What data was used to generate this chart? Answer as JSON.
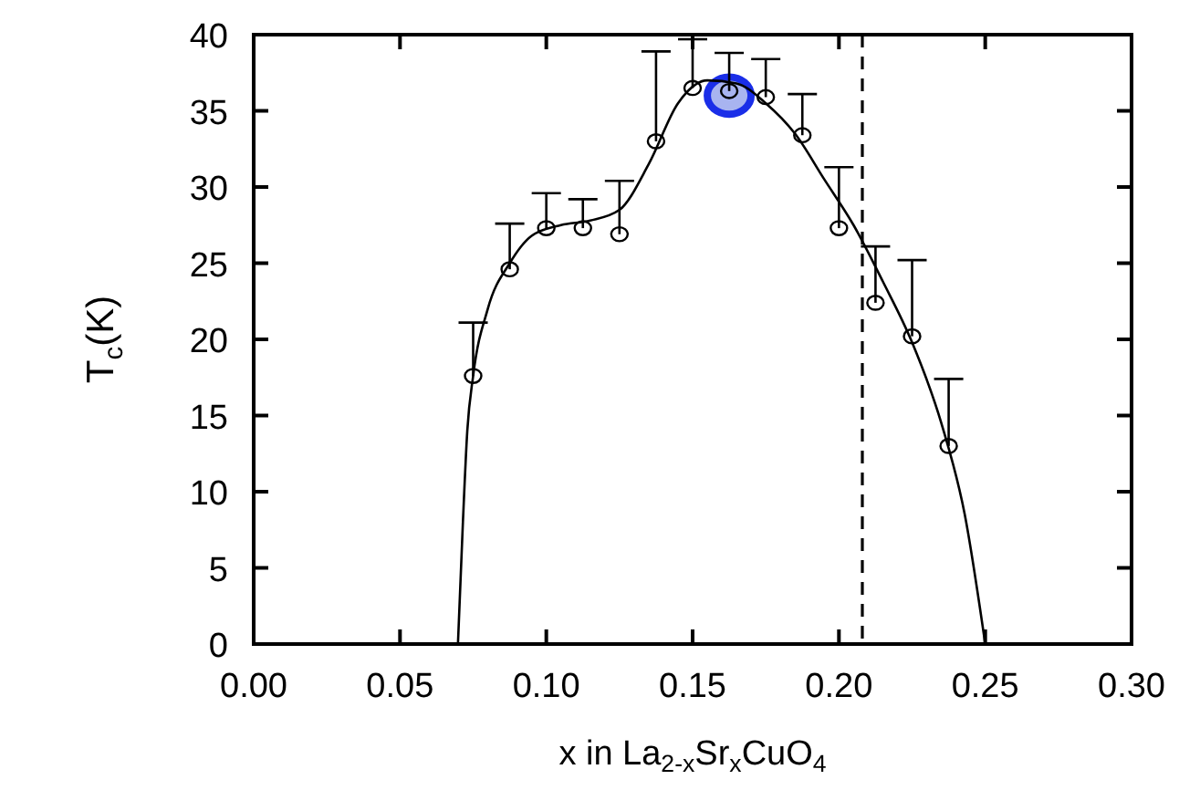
{
  "chart_data": {
    "type": "scatter",
    "xlabel": "x in La$_{2-x}$Sr$_{x}$CuO$_{4}$",
    "ylabel": "T$_{c}$(K)",
    "xlim": [
      0,
      0.3
    ],
    "xticks": [
      {
        "value": 0,
        "label": "0.00"
      },
      {
        "value": 0.05,
        "label": "0.05"
      },
      {
        "value": 0.1,
        "label": "0.10"
      },
      {
        "value": 0.15,
        "label": "0.15"
      },
      {
        "value": 0.2,
        "label": "0.20"
      },
      {
        "value": 0.25,
        "label": "0.25"
      },
      {
        "value": 0.3,
        "label": "0.30"
      }
    ],
    "ylim": [
      0,
      40
    ],
    "yticks": [
      0,
      5,
      10,
      15,
      20,
      25,
      30,
      35,
      40
    ],
    "grid": false,
    "marker": "circle",
    "series": [
      {
        "color": "#1a2ee8",
        "x": [
          0.1625
        ],
        "values": [
          36
        ]
      },
      {
        "type": "line",
        "color": "#000000",
        "marker": "none",
        "x": [
          0.0698,
          0.0715,
          0.073,
          0.075,
          0.08,
          0.0875,
          0.095,
          0.105,
          0.115,
          0.125,
          0.135,
          0.145,
          0.155,
          0.165,
          0.175,
          0.185,
          0.195,
          0.205,
          0.215,
          0.225,
          0.235,
          0.243,
          0.25
        ],
        "values": [
          0,
          8,
          14,
          17.6,
          22,
          25,
          26.8,
          27.5,
          27.8,
          28.5,
          31.5,
          35.5,
          37,
          36.8,
          35.5,
          33.5,
          30.5,
          27.5,
          23.8,
          19.8,
          14.5,
          8.5,
          0
        ]
      },
      {
        "color": "#000000",
        "x": [
          0.075,
          0.0875,
          0.1,
          0.1125,
          0.125,
          0.1375,
          0.15,
          0.1625,
          0.175,
          0.1875,
          0.2,
          0.2125,
          0.225,
          0.2375
        ],
        "values": [
          17.6,
          24.6,
          27.3,
          27.3,
          26.9,
          33,
          36.5,
          36.3,
          35.9,
          33.4,
          27.3,
          22.4,
          20.2,
          13
        ],
        "errors": [
          [
            17.6,
            21.1
          ],
          [
            24.6,
            27.6
          ],
          [
            27.3,
            29.6
          ],
          [
            27.3,
            29.2
          ],
          [
            26.9,
            30.4
          ],
          [
            33,
            38.9
          ],
          [
            36.5,
            39.7
          ],
          [
            36.3,
            38.8
          ],
          [
            35.9,
            38.4
          ],
          [
            33.4,
            36.1
          ],
          [
            27.3,
            31.3
          ],
          [
            22.4,
            26.1
          ],
          [
            20.2,
            25.2
          ],
          [
            13,
            17.4
          ]
        ]
      }
    ],
    "ref_lines": [
      {
        "axis": "x",
        "value": 0.208,
        "line_style": "dashed",
        "color": "#000000"
      }
    ]
  }
}
